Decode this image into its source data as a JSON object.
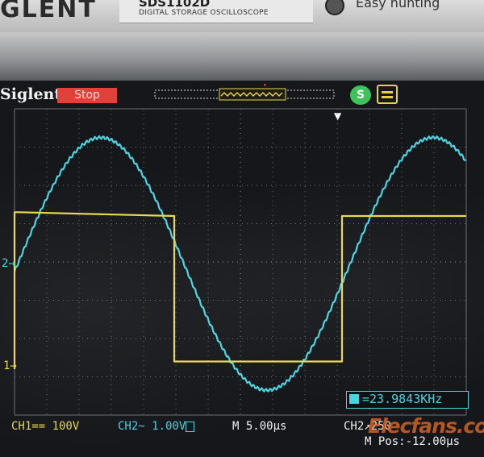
{
  "bezel": {
    "brand": "GLENT",
    "model": "SDS1102D",
    "model_sub": "DIGITAL STORAGE OSCILLOSCOPE",
    "easy": "Easy hunting"
  },
  "header": {
    "brand": "Siglent",
    "state": "Stop",
    "status_badge": "S"
  },
  "measure": {
    "frequency": "=23.9843KHz"
  },
  "footer": {
    "ch1": "CH1== 100V",
    "ch2_prefix": "CH2~ 1.00V",
    "timebase": "M 5.00μs",
    "trigger": "CH2↗250",
    "mpos": "M Pos:-12.00μs"
  },
  "markers": {
    "ch1": "1→",
    "ch2": "2→"
  },
  "watermark": "Elecfans.com",
  "colors": {
    "ch1": "#e8d84a",
    "ch2": "#4cd3e0",
    "stop": "#e2413a",
    "grid": "#6a6f74"
  },
  "chart_data": {
    "type": "line",
    "title": "",
    "xlabel": "",
    "ylabel": "",
    "grid": true,
    "series": [
      {
        "name": "CH1",
        "style": "square",
        "x": [
          0,
          0.0,
          0.15,
          4.95,
          4.95,
          10.15,
          10.15,
          14.0
        ],
        "y": [
          -2.8,
          1.3,
          1.3,
          1.2,
          -2.6,
          -2.6,
          1.2,
          1.2
        ]
      },
      {
        "name": "CH2",
        "style": "sine",
        "amplitude": 3.3,
        "offset": -0.05,
        "period": 10.3,
        "zero_cross": 0.1
      }
    ],
    "xlim": [
      0,
      14
    ],
    "ylim": [
      -4,
      4
    ]
  }
}
